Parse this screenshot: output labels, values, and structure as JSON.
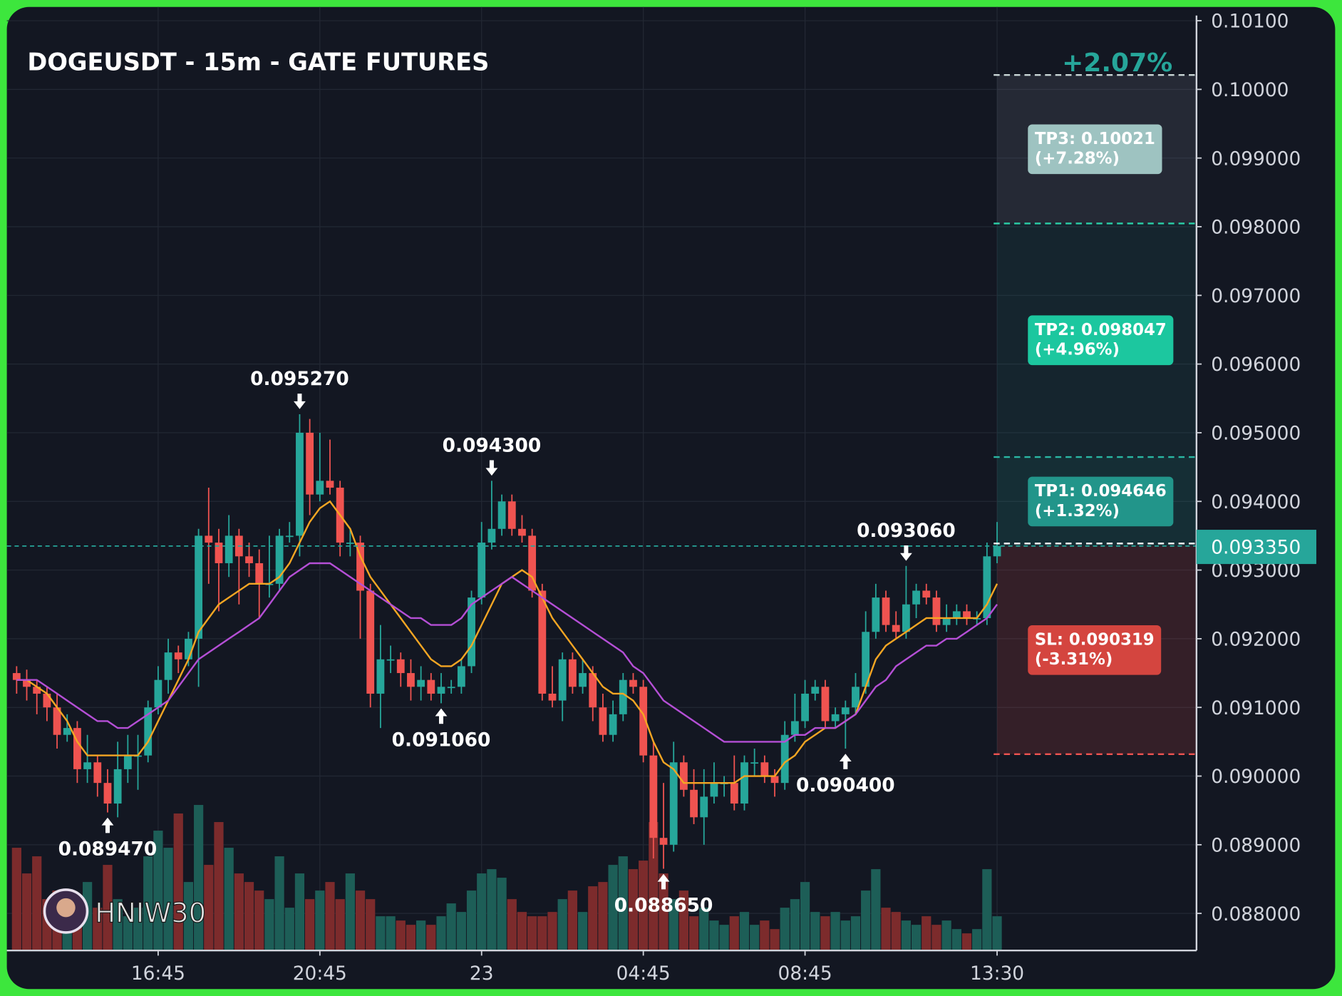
{
  "chart_data": {
    "type": "candlestick",
    "title": "DOGEUSDT - 15m - GATE FUTURES",
    "watermark": "HNIW30",
    "up_color": "#26a69a",
    "down_color": "#ef5350",
    "ylim": [
      0.08746,
      0.1012
    ],
    "yticks": [
      {
        "value": 0.101,
        "label": "0.10100"
      },
      {
        "value": 0.1,
        "label": "0.10000"
      },
      {
        "value": 0.099,
        "label": "0.099000"
      },
      {
        "value": 0.098,
        "label": "0.098000"
      },
      {
        "value": 0.097,
        "label": "0.097000"
      },
      {
        "value": 0.096,
        "label": "0.096000"
      },
      {
        "value": 0.095,
        "label": "0.095000"
      },
      {
        "value": 0.094,
        "label": "0.094000"
      },
      {
        "value": 0.093,
        "label": "0.093000"
      },
      {
        "value": 0.092,
        "label": "0.092000"
      },
      {
        "value": 0.091,
        "label": "0.091000"
      },
      {
        "value": 0.09,
        "label": "0.090000"
      },
      {
        "value": 0.089,
        "label": "0.089000"
      },
      {
        "value": 0.088,
        "label": "0.088000"
      }
    ],
    "xticks": [
      {
        "value": 14,
        "label": "16:45"
      },
      {
        "value": 30,
        "label": "20:45"
      },
      {
        "value": 46,
        "label": "23"
      },
      {
        "value": 62,
        "label": "04:45"
      },
      {
        "value": 78,
        "label": "08:45"
      },
      {
        "value": 97,
        "label": "13:30"
      }
    ],
    "open": [
      0.0915,
      0.0914,
      0.0913,
      0.0912,
      0.091,
      0.0906,
      0.0907,
      0.0901,
      0.0902,
      0.0899,
      0.0896,
      0.0901,
      0.0903,
      0.0903,
      0.091,
      0.0914,
      0.0918,
      0.0917,
      0.092,
      0.0935,
      0.0934,
      0.0931,
      0.0935,
      0.0932,
      0.0931,
      0.0928,
      0.0928,
      0.0935,
      0.0935,
      0.095,
      0.0941,
      0.0943,
      0.0942,
      0.0934,
      0.0934,
      0.0927,
      0.0912,
      0.0917,
      0.0917,
      0.0915,
      0.0913,
      0.0914,
      0.0912,
      0.0913,
      0.0913,
      0.0916,
      0.0926,
      0.0934,
      0.0936,
      0.094,
      0.0936,
      0.0935,
      0.0927,
      0.0912,
      0.0911,
      0.0917,
      0.0913,
      0.0915,
      0.091,
      0.0906,
      0.0909,
      0.0914,
      0.0913,
      0.0903,
      0.0891,
      0.089,
      0.0902,
      0.0898,
      0.0894,
      0.0897,
      0.0899,
      0.0899,
      0.0896,
      0.0902,
      0.0902,
      0.09,
      0.0899,
      0.0906,
      0.0908,
      0.0912,
      0.0913,
      0.0908,
      0.0909,
      0.091,
      0.0913,
      0.0921,
      0.0926,
      0.0922,
      0.0921,
      0.0925,
      0.0927,
      0.0926,
      0.0922,
      0.0923,
      0.0924,
      0.0923,
      0.0923,
      0.0932
    ],
    "high": [
      0.0916,
      0.09155,
      0.0914,
      0.0913,
      0.0912,
      0.0909,
      0.0908,
      0.0906,
      0.0903,
      0.0901,
      0.0905,
      0.0906,
      0.0906,
      0.0911,
      0.0916,
      0.092,
      0.0919,
      0.0921,
      0.0936,
      0.0942,
      0.0936,
      0.0938,
      0.0936,
      0.0934,
      0.0933,
      0.0935,
      0.0936,
      0.0937,
      0.09527,
      0.0952,
      0.095,
      0.0949,
      0.0943,
      0.0936,
      0.0935,
      0.0928,
      0.0922,
      0.0919,
      0.0918,
      0.0917,
      0.0916,
      0.0915,
      0.0915,
      0.0914,
      0.0917,
      0.0927,
      0.0937,
      0.0943,
      0.0941,
      0.0941,
      0.0938,
      0.0936,
      0.0928,
      0.0916,
      0.0918,
      0.0918,
      0.0917,
      0.0916,
      0.0912,
      0.0911,
      0.0915,
      0.0915,
      0.0914,
      0.0905,
      0.0899,
      0.0905,
      0.0903,
      0.0901,
      0.0901,
      0.0902,
      0.09,
      0.0903,
      0.0903,
      0.0904,
      0.0903,
      0.0901,
      0.0908,
      0.0912,
      0.0914,
      0.0914,
      0.0914,
      0.091,
      0.0911,
      0.0915,
      0.0924,
      0.0928,
      0.0927,
      0.0924,
      0.09306,
      0.0928,
      0.0928,
      0.0927,
      0.0925,
      0.0925,
      0.0925,
      0.0924,
      0.0934,
      0.0937
    ],
    "low": [
      0.0912,
      0.0911,
      0.0909,
      0.0908,
      0.0904,
      0.0905,
      0.0899,
      0.0899,
      0.0897,
      0.08947,
      0.0894,
      0.0899,
      0.0898,
      0.0902,
      0.0909,
      0.0912,
      0.0915,
      0.0916,
      0.0913,
      0.0928,
      0.0924,
      0.0929,
      0.0925,
      0.0929,
      0.0923,
      0.0926,
      0.0927,
      0.0934,
      0.0932,
      0.0938,
      0.094,
      0.0941,
      0.0932,
      0.0932,
      0.092,
      0.091,
      0.0907,
      0.0915,
      0.0913,
      0.0911,
      0.0911,
      0.0911,
      0.09106,
      0.0912,
      0.0912,
      0.0915,
      0.0925,
      0.0933,
      0.0935,
      0.0935,
      0.0934,
      0.0926,
      0.0911,
      0.091,
      0.0908,
      0.0912,
      0.0912,
      0.0908,
      0.0905,
      0.0905,
      0.0908,
      0.0912,
      0.0902,
      0.0888,
      0.08865,
      0.0889,
      0.0897,
      0.0893,
      0.089,
      0.0896,
      0.0897,
      0.0895,
      0.0895,
      0.09,
      0.0899,
      0.0897,
      0.0898,
      0.0905,
      0.0907,
      0.0911,
      0.0907,
      0.0907,
      0.0904,
      0.0909,
      0.0912,
      0.092,
      0.0921,
      0.092,
      0.092,
      0.0923,
      0.0925,
      0.0921,
      0.0921,
      0.0922,
      0.0922,
      0.0922,
      0.0922,
      0.0931
    ],
    "close": [
      0.0914,
      0.0913,
      0.0912,
      0.091,
      0.0906,
      0.0907,
      0.0901,
      0.0902,
      0.0899,
      0.0896,
      0.0901,
      0.0903,
      0.0903,
      0.091,
      0.0914,
      0.0918,
      0.0917,
      0.092,
      0.0935,
      0.0934,
      0.0931,
      0.0935,
      0.0932,
      0.0931,
      0.0928,
      0.0928,
      0.0935,
      0.0935,
      0.095,
      0.0941,
      0.0943,
      0.0942,
      0.0934,
      0.0934,
      0.0927,
      0.0912,
      0.0917,
      0.0917,
      0.0915,
      0.0913,
      0.0914,
      0.0912,
      0.0913,
      0.0913,
      0.0916,
      0.0926,
      0.0934,
      0.0936,
      0.094,
      0.0936,
      0.0935,
      0.0927,
      0.0912,
      0.0911,
      0.0917,
      0.0913,
      0.0915,
      0.091,
      0.0906,
      0.0909,
      0.0914,
      0.0913,
      0.0903,
      0.0891,
      0.089,
      0.0902,
      0.0898,
      0.0894,
      0.0897,
      0.0899,
      0.0899,
      0.0896,
      0.0902,
      0.0902,
      0.09,
      0.0899,
      0.0906,
      0.0908,
      0.0912,
      0.0913,
      0.0908,
      0.0909,
      0.091,
      0.0913,
      0.0921,
      0.0926,
      0.0922,
      0.0921,
      0.0925,
      0.0927,
      0.0926,
      0.0922,
      0.0923,
      0.0924,
      0.0923,
      0.0923,
      0.0932,
      0.09335
    ],
    "volume": [
      120,
      90,
      110,
      60,
      70,
      40,
      60,
      80,
      50,
      100,
      60,
      40,
      50,
      110,
      140,
      120,
      160,
      80,
      170,
      100,
      150,
      120,
      90,
      80,
      70,
      60,
      110,
      50,
      90,
      60,
      70,
      80,
      60,
      90,
      70,
      60,
      40,
      40,
      35,
      30,
      35,
      30,
      40,
      55,
      45,
      70,
      90,
      95,
      85,
      60,
      45,
      40,
      40,
      45,
      60,
      70,
      45,
      75,
      80,
      100,
      110,
      95,
      105,
      150,
      90,
      60,
      70,
      40,
      50,
      35,
      30,
      40,
      45,
      30,
      35,
      25,
      50,
      60,
      80,
      45,
      40,
      45,
      35,
      40,
      70,
      95,
      50,
      45,
      35,
      30,
      40,
      30,
      35,
      25,
      20,
      25,
      95,
      40
    ],
    "volume_up_color": "#1d5e57",
    "volume_down_color": "#7c2b2c",
    "moving_averages": [
      {
        "color": "#f5a623",
        "values": [
          0.0914,
          0.0914,
          0.0913,
          0.0912,
          0.091,
          0.0908,
          0.0905,
          0.0903,
          0.0903,
          0.0903,
          0.0903,
          0.0903,
          0.0903,
          0.0905,
          0.0908,
          0.0911,
          0.0914,
          0.0917,
          0.0921,
          0.0923,
          0.0925,
          0.0926,
          0.0927,
          0.0928,
          0.0928,
          0.0928,
          0.0929,
          0.0931,
          0.0934,
          0.0937,
          0.0939,
          0.094,
          0.0938,
          0.0936,
          0.0932,
          0.0929,
          0.0927,
          0.0925,
          0.0923,
          0.0921,
          0.0919,
          0.0917,
          0.0916,
          0.0916,
          0.0917,
          0.0919,
          0.0922,
          0.0925,
          0.0928,
          0.0929,
          0.093,
          0.0929,
          0.0926,
          0.0923,
          0.0921,
          0.0919,
          0.0917,
          0.0915,
          0.0913,
          0.0912,
          0.0912,
          0.0911,
          0.0909,
          0.0905,
          0.0902,
          0.0901,
          0.0899,
          0.0899,
          0.0899,
          0.0899,
          0.0899,
          0.0899,
          0.09,
          0.09,
          0.09,
          0.09,
          0.0902,
          0.0903,
          0.0905,
          0.0906,
          0.0907,
          0.0907,
          0.0908,
          0.0909,
          0.0913,
          0.0917,
          0.0919,
          0.092,
          0.0921,
          0.0922,
          0.0923,
          0.0923,
          0.0923,
          0.0923,
          0.0923,
          0.0923,
          0.0925,
          0.0928
        ]
      },
      {
        "color": "#b54fd6",
        "values": [
          0.0914,
          0.0914,
          0.0914,
          0.0913,
          0.0912,
          0.0911,
          0.091,
          0.0909,
          0.0908,
          0.0908,
          0.0907,
          0.0907,
          0.0908,
          0.0909,
          0.091,
          0.0911,
          0.0913,
          0.0915,
          0.0917,
          0.0918,
          0.0919,
          0.092,
          0.0921,
          0.0922,
          0.0923,
          0.0925,
          0.0927,
          0.0929,
          0.093,
          0.0931,
          0.0931,
          0.0931,
          0.093,
          0.0929,
          0.0928,
          0.0927,
          0.0926,
          0.0925,
          0.0924,
          0.0923,
          0.0923,
          0.0922,
          0.0922,
          0.0922,
          0.0923,
          0.0925,
          0.0926,
          0.0927,
          0.0928,
          0.0929,
          0.0928,
          0.0927,
          0.0926,
          0.0925,
          0.0924,
          0.0923,
          0.0922,
          0.0921,
          0.092,
          0.0919,
          0.0918,
          0.0916,
          0.0915,
          0.0913,
          0.0911,
          0.091,
          0.0909,
          0.0908,
          0.0907,
          0.0906,
          0.0905,
          0.0905,
          0.0905,
          0.0905,
          0.0905,
          0.0905,
          0.0905,
          0.0906,
          0.0906,
          0.0907,
          0.0907,
          0.0907,
          0.0908,
          0.0909,
          0.0911,
          0.0913,
          0.0914,
          0.0916,
          0.0917,
          0.0918,
          0.0919,
          0.0919,
          0.092,
          0.092,
          0.0921,
          0.0922,
          0.0923,
          0.0925
        ]
      }
    ],
    "annotations": [
      {
        "text": "0.089470",
        "value": 0.08947,
        "index": 9,
        "direction": "up"
      },
      {
        "text": "0.095270",
        "value": 0.09527,
        "index": 28,
        "direction": "down"
      },
      {
        "text": "0.091060",
        "value": 0.09106,
        "index": 42,
        "direction": "up"
      },
      {
        "text": "0.094300",
        "value": 0.0943,
        "index": 47,
        "direction": "down"
      },
      {
        "text": "0.088650",
        "value": 0.08865,
        "index": 64,
        "direction": "up"
      },
      {
        "text": "0.090400",
        "value": 0.0904,
        "index": 82,
        "direction": "up"
      },
      {
        "text": "0.093060",
        "value": 0.09306,
        "index": 88,
        "direction": "down"
      }
    ],
    "position": {
      "pnl_label": "+2.07%",
      "pnl_color": "#26a69a",
      "entry": {
        "value": 0.09335,
        "label": "0.093350"
      },
      "entry_color": "#26a69a",
      "levels": [
        {
          "value": 0.10021,
          "lines": [
            "TP3: 0.10021",
            "(+7.28%)"
          ],
          "line_color": "#c9d6d6",
          "box_color": "#9ec3c1",
          "zone_color": "rgba(200,210,225,0.10)"
        },
        {
          "value": 0.098047,
          "lines": [
            "TP2: 0.098047",
            "(+4.96%)"
          ],
          "line_color": "#2ad1a8",
          "box_color": "#1cc79f",
          "zone_color": "rgba(38,166,154,0.10)"
        },
        {
          "value": 0.094646,
          "lines": [
            "TP1: 0.094646",
            "(+1.32%)"
          ],
          "line_color": "#2ab7a4",
          "box_color": "#22958a",
          "zone_color": "rgba(38,166,154,0.16)"
        },
        {
          "value": 0.090319,
          "lines": [
            "SL: 0.090319",
            "(-3.31%)"
          ],
          "line_color": "#ef5350",
          "box_color": "#d4453f",
          "zone_color": "rgba(239,83,80,0.15)"
        }
      ]
    }
  }
}
